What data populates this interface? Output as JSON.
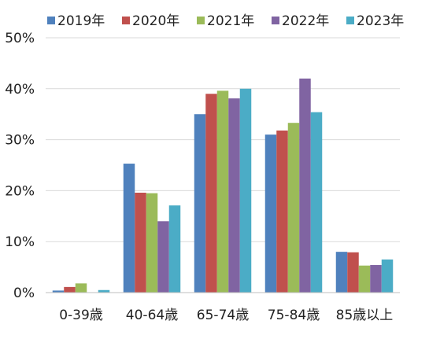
{
  "chart_data": {
    "type": "bar",
    "title": "",
    "xlabel": "",
    "ylabel": "",
    "categories": [
      "0-39歳",
      "40-64歳",
      "65-74歳",
      "75-84歳",
      "85歳以上"
    ],
    "ylim": [
      0,
      50
    ],
    "yticks": [
      0,
      10,
      20,
      30,
      40,
      50
    ],
    "ytick_labels": [
      "0%",
      "10%",
      "20%",
      "30%",
      "40%",
      "50%"
    ],
    "grid": true,
    "legend_position": "top",
    "series": [
      {
        "name": "2019年",
        "color": "#4f81bd",
        "values": [
          0.4,
          25.3,
          35.0,
          31.0,
          8.0
        ]
      },
      {
        "name": "2020年",
        "color": "#c0504d",
        "values": [
          1.1,
          19.6,
          39.0,
          31.8,
          7.9
        ]
      },
      {
        "name": "2021年",
        "color": "#9bbb59",
        "values": [
          1.8,
          19.5,
          39.6,
          33.3,
          5.3
        ]
      },
      {
        "name": "2022年",
        "color": "#8064a2",
        "values": [
          0.0,
          14.0,
          38.1,
          42.0,
          5.4
        ]
      },
      {
        "name": "2023年",
        "color": "#4bacc6",
        "values": [
          0.5,
          17.1,
          40.0,
          35.4,
          6.5
        ]
      }
    ]
  }
}
